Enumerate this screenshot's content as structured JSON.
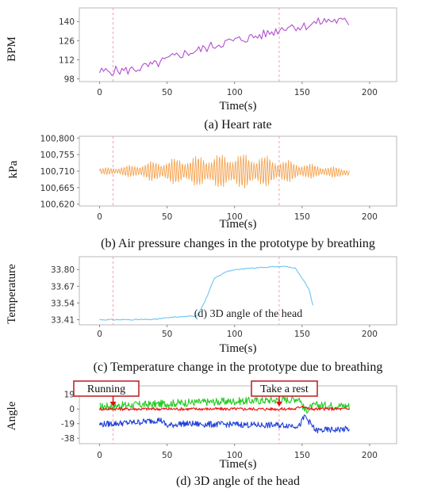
{
  "chart_data": [
    {
      "type": "line",
      "caption": "(a) Heart rate",
      "xlabel": "Time(s)",
      "ylabel": "BPM",
      "xlim": [
        -15,
        220
      ],
      "ylim": [
        96,
        150
      ],
      "x_ticks": [
        0,
        50,
        100,
        150,
        200
      ],
      "y_ticks": [
        98,
        112,
        126,
        140
      ],
      "marker_lines_x": [
        10,
        133
      ],
      "series": [
        {
          "color": "#b24fd0",
          "x": [
            0,
            10,
            20,
            30,
            40,
            50,
            60,
            70,
            80,
            90,
            100,
            110,
            120,
            130,
            140,
            150,
            160,
            170,
            180,
            185
          ],
          "y": [
            103,
            104,
            104,
            106,
            108,
            112,
            116,
            118,
            121,
            124,
            126,
            128,
            130,
            133,
            137,
            136,
            139,
            141,
            140,
            139
          ]
        }
      ]
    },
    {
      "type": "line",
      "caption": "(b) Air pressure changes in the prototype by breathing",
      "xlabel": "Time(s)",
      "ylabel": "kPa",
      "xlim": [
        -15,
        220
      ],
      "ylim": [
        100.615,
        100.805
      ],
      "x_ticks": [
        0,
        50,
        100,
        150,
        200
      ],
      "y_ticks": [
        100.62,
        100.665,
        100.71,
        100.755,
        100.8
      ],
      "y_tick_labels": [
        "100,620",
        "100,665",
        "100,710",
        "100,755",
        "100,800"
      ],
      "marker_lines_x": [
        10,
        133
      ],
      "series": [
        {
          "color": "#f4a350",
          "x": [
            0,
            20,
            40,
            60,
            80,
            100,
            120,
            140,
            160,
            185
          ],
          "center": [
            100.71,
            100.71,
            100.71,
            100.71,
            100.71,
            100.71,
            100.71,
            100.71,
            100.71,
            100.705
          ],
          "amplitude": [
            0.008,
            0.015,
            0.028,
            0.038,
            0.045,
            0.05,
            0.045,
            0.03,
            0.018,
            0.012
          ]
        }
      ]
    },
    {
      "type": "line",
      "caption": "(c) Temperature change in the prototype due to breathing",
      "overlay_text": "(d) 3D angle of the head",
      "xlabel": "Time(s)",
      "ylabel": "Temperature",
      "xlim": [
        -15,
        220
      ],
      "ylim": [
        33.37,
        33.9
      ],
      "x_ticks": [
        0,
        50,
        100,
        150,
        200
      ],
      "y_ticks": [
        33.41,
        33.54,
        33.67,
        33.8
      ],
      "y_tick_labels": [
        "33.41",
        "33.54",
        "33.67",
        "33.80"
      ],
      "marker_lines_x": [
        10,
        133
      ],
      "series": [
        {
          "color": "#6cc4ef",
          "x": [
            0,
            20,
            40,
            55,
            65,
            72,
            78,
            85,
            95,
            110,
            125,
            138,
            145,
            155,
            158
          ],
          "y": [
            33.41,
            33.41,
            33.412,
            33.43,
            33.435,
            33.44,
            33.55,
            33.73,
            33.79,
            33.81,
            33.82,
            33.825,
            33.81,
            33.65,
            33.52
          ]
        }
      ]
    },
    {
      "type": "line",
      "caption": "(d) 3D angle of the head",
      "xlabel": "Time(s)",
      "ylabel": "Angle",
      "xlim": [
        -15,
        220
      ],
      "ylim": [
        -45,
        30
      ],
      "x_ticks": [
        0,
        50,
        100,
        150,
        200
      ],
      "y_ticks": [
        19,
        0,
        -19,
        -38
      ],
      "marker_lines_x": [
        10,
        133
      ],
      "annotations": [
        {
          "text": "Running",
          "x": 10
        },
        {
          "text": "Take a rest",
          "x": 133
        }
      ],
      "series": [
        {
          "color": "#22cc22",
          "x": [
            0,
            20,
            40,
            60,
            80,
            100,
            120,
            140,
            148,
            152,
            160,
            185
          ],
          "y": [
            3,
            5,
            6,
            8,
            9,
            10,
            11,
            12,
            14,
            -2,
            5,
            4
          ],
          "noise": 5
        },
        {
          "color": "#ee1111",
          "x": [
            0,
            40,
            80,
            120,
            145,
            150,
            155,
            185
          ],
          "y": [
            0,
            0,
            0,
            0,
            0,
            4,
            0,
            0
          ],
          "noise": 2
        },
        {
          "color": "#1f3fd8",
          "x": [
            0,
            10,
            30,
            45,
            50,
            60,
            80,
            100,
            120,
            140,
            148,
            152,
            160,
            185
          ],
          "y": [
            -20,
            -19,
            -17,
            -14,
            -22,
            -19,
            -20,
            -20,
            -21,
            -21,
            -22,
            -9,
            -28,
            -26
          ],
          "noise": 4
        }
      ]
    }
  ]
}
